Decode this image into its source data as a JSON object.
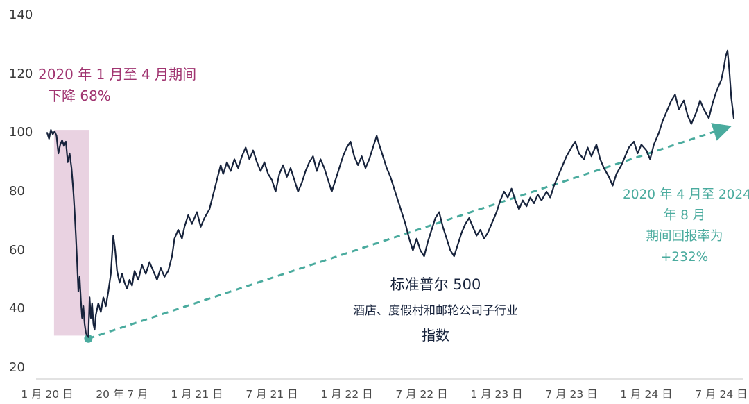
{
  "colors": {
    "navy": "#17233c",
    "teal": "#4aab9e",
    "magenta": "#a03470",
    "band": "#e9d2e1",
    "axis": "#3a3a3a",
    "baseline": "#d8d8d8"
  },
  "annotations": {
    "drawdown": {
      "line1": "2020 年 1 月至 4 月期间",
      "line2": "下降 68%"
    },
    "recovery": {
      "line1": "2020 年 4 月至 2024",
      "line2": "年 8 月",
      "line3": "期间回报率为",
      "line4": "+232%"
    },
    "index": {
      "line1": "标准普尔 500",
      "line2": "酒店、度假村和邮轮公司子行业",
      "line3": "指数"
    }
  },
  "chart_data": {
    "type": "line",
    "title": "",
    "xlabel": "",
    "ylabel": "",
    "ylim": [
      20,
      140
    ],
    "grid": false,
    "legend": false,
    "x_axis_unit": "months since Jan 2020",
    "y_ticks": [
      140,
      120,
      100,
      80,
      60,
      40,
      20
    ],
    "x_ticks": [
      {
        "t": 0,
        "label": "1 月 20 日"
      },
      {
        "t": 6,
        "label": "20 年 7 月"
      },
      {
        "t": 12,
        "label": "1 月 21 日"
      },
      {
        "t": 18,
        "label": "7 月 21 日"
      },
      {
        "t": 24,
        "label": "1 月 22 日"
      },
      {
        "t": 30,
        "label": "7 月 22 日"
      },
      {
        "t": 36,
        "label": "1 月 23 日"
      },
      {
        "t": 42,
        "label": "7 月 23 日"
      },
      {
        "t": 48,
        "label": "1 月 24 日"
      },
      {
        "t": 54,
        "label": "7 月 24 日"
      }
    ],
    "highlight_band": {
      "t_start": 0.55,
      "t_end": 3.35,
      "v_low": 31,
      "v_high": 101
    },
    "trend_arrow": {
      "from_t": 3.3,
      "from_v": 30,
      "to_t": 54.6,
      "to_v": 102,
      "style": "dashed"
    },
    "series": [
      {
        "name": "标准普尔 500 酒店、度假村和邮轮公司子行业指数",
        "points": [
          [
            0,
            100
          ],
          [
            0.15,
            98
          ],
          [
            0.3,
            101
          ],
          [
            0.45,
            99.5
          ],
          [
            0.6,
            100.5
          ],
          [
            0.75,
            99
          ],
          [
            0.9,
            93
          ],
          [
            1.05,
            96
          ],
          [
            1.2,
            97.5
          ],
          [
            1.35,
            95.5
          ],
          [
            1.5,
            97
          ],
          [
            1.65,
            90
          ],
          [
            1.8,
            93
          ],
          [
            1.95,
            88
          ],
          [
            2.1,
            80
          ],
          [
            2.2,
            73
          ],
          [
            2.3,
            65
          ],
          [
            2.4,
            56
          ],
          [
            2.5,
            46
          ],
          [
            2.6,
            51
          ],
          [
            2.7,
            43
          ],
          [
            2.8,
            37
          ],
          [
            2.9,
            41
          ],
          [
            3,
            35
          ],
          [
            3.1,
            32
          ],
          [
            3.2,
            31
          ],
          [
            3.3,
            30.5
          ],
          [
            3.4,
            44
          ],
          [
            3.5,
            37
          ],
          [
            3.6,
            42
          ],
          [
            3.7,
            35
          ],
          [
            3.8,
            33
          ],
          [
            3.9,
            38
          ],
          [
            4.1,
            42
          ],
          [
            4.3,
            39
          ],
          [
            4.5,
            44
          ],
          [
            4.7,
            41
          ],
          [
            4.9,
            46
          ],
          [
            5.1,
            52
          ],
          [
            5.3,
            65
          ],
          [
            5.45,
            60
          ],
          [
            5.6,
            53
          ],
          [
            5.8,
            49
          ],
          [
            6,
            52
          ],
          [
            6.2,
            49
          ],
          [
            6.4,
            47
          ],
          [
            6.6,
            50
          ],
          [
            6.8,
            48
          ],
          [
            7,
            53
          ],
          [
            7.3,
            50
          ],
          [
            7.6,
            55
          ],
          [
            7.9,
            52
          ],
          [
            8.2,
            56
          ],
          [
            8.5,
            53
          ],
          [
            8.8,
            50
          ],
          [
            9.1,
            54
          ],
          [
            9.4,
            51
          ],
          [
            9.7,
            53
          ],
          [
            10,
            58
          ],
          [
            10.2,
            64
          ],
          [
            10.5,
            67
          ],
          [
            10.8,
            64
          ],
          [
            11,
            68
          ],
          [
            11.3,
            72
          ],
          [
            11.6,
            69
          ],
          [
            12,
            73
          ],
          [
            12.3,
            68
          ],
          [
            12.6,
            71
          ],
          [
            13,
            74
          ],
          [
            13.3,
            79
          ],
          [
            13.6,
            84
          ],
          [
            13.9,
            89
          ],
          [
            14.1,
            86
          ],
          [
            14.4,
            90
          ],
          [
            14.7,
            87
          ],
          [
            15,
            91
          ],
          [
            15.3,
            88
          ],
          [
            15.6,
            92
          ],
          [
            15.9,
            95
          ],
          [
            16.2,
            91
          ],
          [
            16.5,
            94
          ],
          [
            16.8,
            90
          ],
          [
            17.1,
            87
          ],
          [
            17.4,
            90
          ],
          [
            17.7,
            86
          ],
          [
            18,
            84
          ],
          [
            18.3,
            80
          ],
          [
            18.6,
            86
          ],
          [
            18.9,
            89
          ],
          [
            19.2,
            85
          ],
          [
            19.5,
            88
          ],
          [
            19.8,
            84
          ],
          [
            20.1,
            80
          ],
          [
            20.4,
            83
          ],
          [
            20.7,
            87
          ],
          [
            21,
            90
          ],
          [
            21.3,
            92
          ],
          [
            21.6,
            87
          ],
          [
            21.9,
            91
          ],
          [
            22.2,
            88
          ],
          [
            22.5,
            84
          ],
          [
            22.8,
            80
          ],
          [
            23.1,
            84
          ],
          [
            23.4,
            88
          ],
          [
            23.7,
            92
          ],
          [
            24,
            95
          ],
          [
            24.3,
            97
          ],
          [
            24.6,
            92
          ],
          [
            24.9,
            89
          ],
          [
            25.2,
            92
          ],
          [
            25.5,
            88
          ],
          [
            25.8,
            91
          ],
          [
            26.1,
            95
          ],
          [
            26.4,
            99
          ],
          [
            26.6,
            96
          ],
          [
            26.9,
            92
          ],
          [
            27.2,
            88
          ],
          [
            27.5,
            85
          ],
          [
            27.8,
            81
          ],
          [
            28.1,
            77
          ],
          [
            28.4,
            73
          ],
          [
            28.7,
            69
          ],
          [
            29,
            64
          ],
          [
            29.3,
            60
          ],
          [
            29.6,
            64
          ],
          [
            29.9,
            60
          ],
          [
            30.2,
            58
          ],
          [
            30.5,
            63
          ],
          [
            30.8,
            67
          ],
          [
            31.1,
            71
          ],
          [
            31.4,
            73
          ],
          [
            31.7,
            68
          ],
          [
            32,
            64
          ],
          [
            32.3,
            60
          ],
          [
            32.6,
            58
          ],
          [
            32.9,
            62
          ],
          [
            33.2,
            66
          ],
          [
            33.5,
            69
          ],
          [
            33.8,
            71
          ],
          [
            34.1,
            68
          ],
          [
            34.4,
            65
          ],
          [
            34.7,
            67
          ],
          [
            35,
            64
          ],
          [
            35.3,
            66
          ],
          [
            35.6,
            69
          ],
          [
            36,
            73
          ],
          [
            36.3,
            77
          ],
          [
            36.6,
            80
          ],
          [
            36.9,
            78
          ],
          [
            37.2,
            81
          ],
          [
            37.5,
            77
          ],
          [
            37.8,
            74
          ],
          [
            38.1,
            77
          ],
          [
            38.4,
            75
          ],
          [
            38.7,
            78
          ],
          [
            39,
            76
          ],
          [
            39.3,
            79
          ],
          [
            39.6,
            77
          ],
          [
            40,
            80
          ],
          [
            40.3,
            78
          ],
          [
            40.6,
            82
          ],
          [
            41,
            86
          ],
          [
            41.3,
            89
          ],
          [
            41.6,
            92
          ],
          [
            42,
            95
          ],
          [
            42.3,
            97
          ],
          [
            42.6,
            93
          ],
          [
            43,
            91
          ],
          [
            43.3,
            95
          ],
          [
            43.6,
            92
          ],
          [
            44,
            96
          ],
          [
            44.3,
            91
          ],
          [
            44.6,
            88
          ],
          [
            45,
            85
          ],
          [
            45.3,
            82
          ],
          [
            45.6,
            86
          ],
          [
            46,
            89
          ],
          [
            46.3,
            92
          ],
          [
            46.6,
            95
          ],
          [
            47,
            97
          ],
          [
            47.3,
            93
          ],
          [
            47.6,
            96
          ],
          [
            48,
            94
          ],
          [
            48.3,
            91
          ],
          [
            48.6,
            96
          ],
          [
            49,
            100
          ],
          [
            49.3,
            104
          ],
          [
            49.6,
            107
          ],
          [
            50,
            111
          ],
          [
            50.3,
            113
          ],
          [
            50.6,
            108
          ],
          [
            51,
            111
          ],
          [
            51.3,
            106
          ],
          [
            51.6,
            103
          ],
          [
            52,
            107
          ],
          [
            52.3,
            111
          ],
          [
            52.6,
            108
          ],
          [
            53,
            105
          ],
          [
            53.3,
            110
          ],
          [
            53.6,
            114
          ],
          [
            54,
            118
          ],
          [
            54.2,
            122
          ],
          [
            54.35,
            126
          ],
          [
            54.5,
            128
          ],
          [
            54.65,
            121
          ],
          [
            54.8,
            112
          ],
          [
            55,
            105
          ]
        ]
      }
    ]
  }
}
